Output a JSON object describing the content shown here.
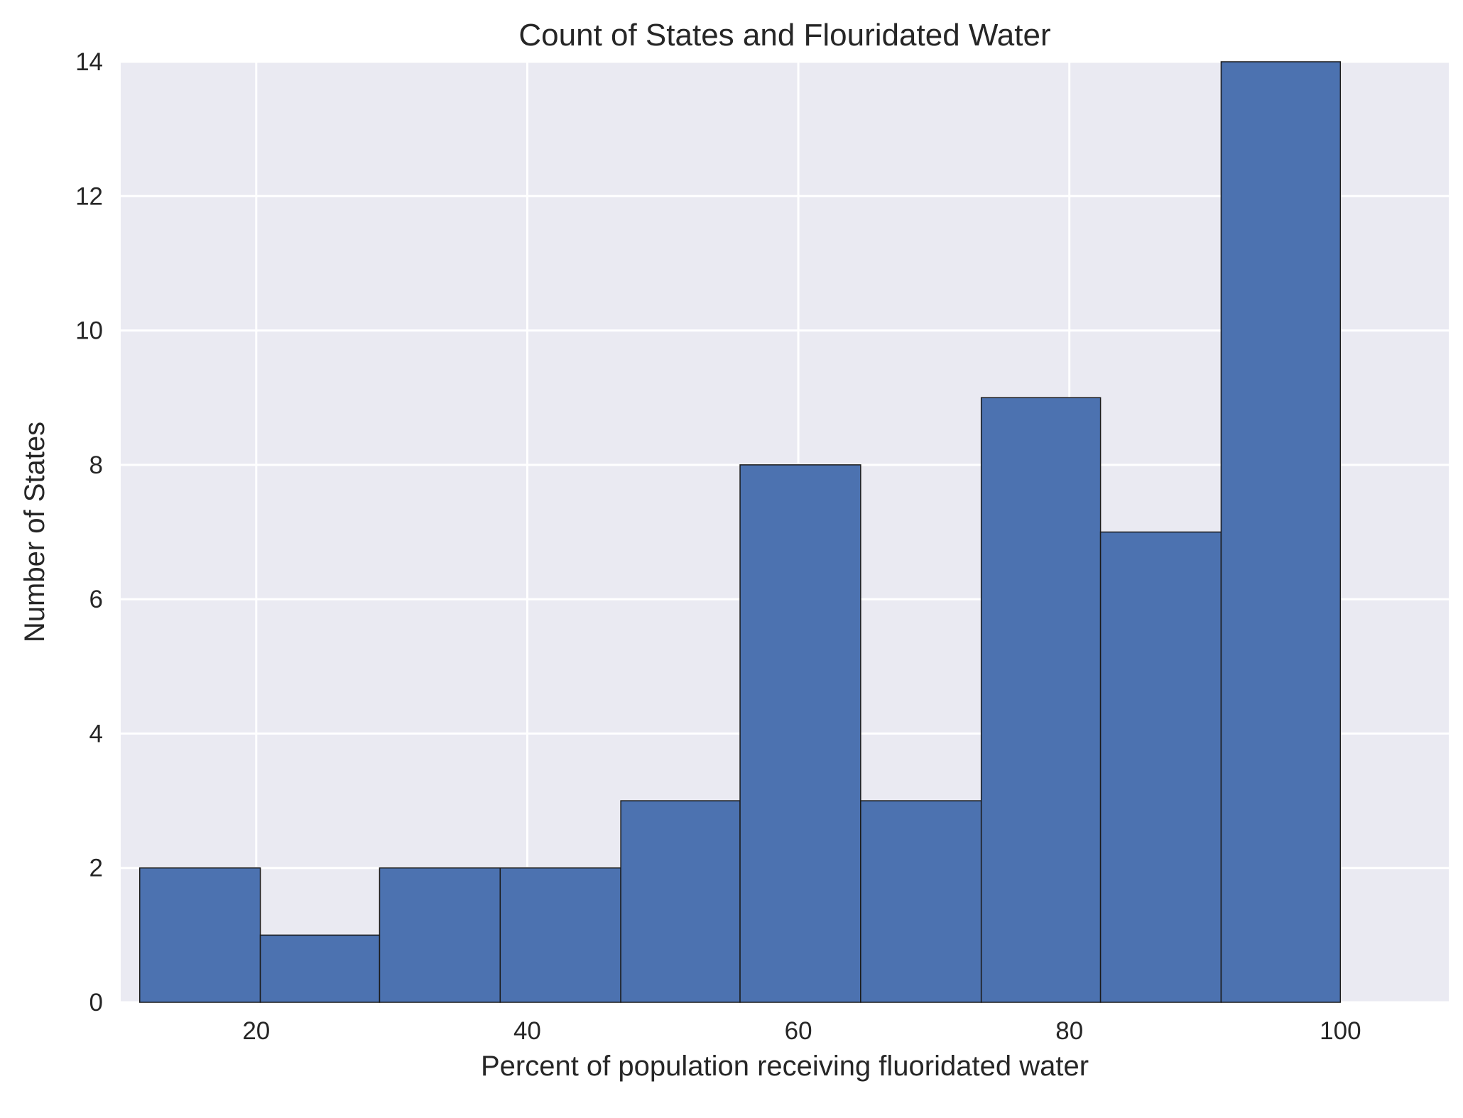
{
  "chart_data": {
    "type": "bar",
    "title": "Count of States and Flouridated Water",
    "xlabel": "Percent of population receiving fluoridated water",
    "ylabel": "Number of States",
    "xlim": [
      10,
      108
    ],
    "ylim": [
      0,
      14
    ],
    "x_ticks": [
      20,
      40,
      60,
      80,
      100
    ],
    "y_ticks": [
      0,
      2,
      4,
      6,
      8,
      10,
      12,
      14
    ],
    "bins": [
      {
        "x0": 11.4,
        "x1": 20.3,
        "count": 2
      },
      {
        "x0": 20.3,
        "x1": 29.1,
        "count": 1
      },
      {
        "x0": 29.1,
        "x1": 38.0,
        "count": 2
      },
      {
        "x0": 38.0,
        "x1": 46.9,
        "count": 2
      },
      {
        "x0": 46.9,
        "x1": 55.7,
        "count": 3
      },
      {
        "x0": 55.7,
        "x1": 64.6,
        "count": 8
      },
      {
        "x0": 64.6,
        "x1": 73.5,
        "count": 3
      },
      {
        "x0": 73.5,
        "x1": 82.3,
        "count": 9
      },
      {
        "x0": 82.3,
        "x1": 91.2,
        "count": 7
      },
      {
        "x0": 91.2,
        "x1": 100.0,
        "count": 14
      }
    ],
    "grid": true,
    "colors": {
      "bar": "#4c72b0",
      "bar_edge": "#1a1a1a",
      "plot_background": "#eaeaf2",
      "grid": "#ffffff"
    }
  }
}
